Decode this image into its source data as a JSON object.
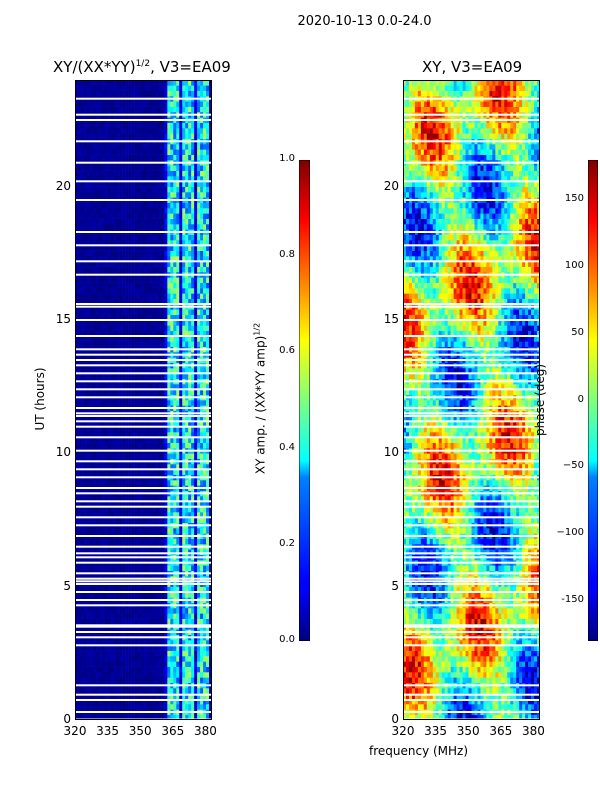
{
  "figure": {
    "suptitle": "2020-10-13 0.0-24.0",
    "shared_xlabel": "frequency (MHz)"
  },
  "chart_data": [
    {
      "type": "heatmap",
      "title": "XY/(XX*YY)",
      "title_exponent": "1/2",
      "title_suffix": ", V3=EA09",
      "xlabel": "",
      "ylabel": "UT (hours)",
      "xlim": [
        320,
        383
      ],
      "ylim": [
        0,
        24
      ],
      "xticks": [
        "320",
        "335",
        "350",
        "365",
        "380"
      ],
      "yticks": [
        "0",
        "5",
        "10",
        "15",
        "20"
      ],
      "colorbar": {
        "label": "XY amp. / (XX*YY amp)",
        "label_exponent": "1/2",
        "range": [
          0.0,
          1.0
        ],
        "ticks": [
          "0.0",
          "0.2",
          "0.4",
          "0.6",
          "0.8",
          "1.0"
        ],
        "colormap": "jet"
      }
    },
    {
      "type": "heatmap",
      "title": "XY, V3=EA09",
      "xlabel": "frequency (MHz)",
      "ylabel": "",
      "xlim": [
        320,
        383
      ],
      "ylim": [
        0,
        24
      ],
      "xticks": [
        "320",
        "335",
        "350",
        "365",
        "380"
      ],
      "yticks": [
        "0",
        "5",
        "10",
        "15",
        "20"
      ],
      "colorbar": {
        "label": "phase (deg)",
        "range": [
          -180,
          180
        ],
        "ticks": [
          "-150",
          "−100",
          "−50",
          "0",
          "50",
          "100",
          "150"
        ],
        "colormap": "jet"
      }
    }
  ],
  "colors": {
    "background": "#ffffff",
    "jet_low": "#00007f",
    "jet_high": "#7f0000"
  }
}
